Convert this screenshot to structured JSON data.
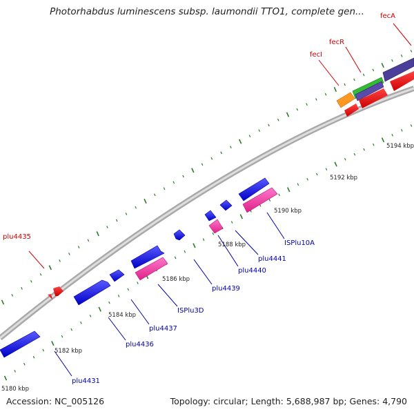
{
  "title": "Photorhabdus luminescens subsp. laumondii TTO1, complete gen...",
  "footer": {
    "accession": "Accession: NC_005126",
    "summary": "Topology: circular; Length: 5,688,987 bp; Genes: 4,790"
  },
  "colors": {
    "red_label": "#cc0000",
    "blue_label": "#0000aa",
    "blue_feature": "#1a1ae6",
    "pink_feature": "#ee3399",
    "red_feature": "#ee0000",
    "orange_feature": "#ff9922",
    "green_feature": "#33bb33",
    "purple_feature": "#4b3f99",
    "tick_green": "#2a7a2a",
    "backbone": "#909090"
  },
  "tick_labels": [
    {
      "text": "5180 kbp"
    },
    {
      "text": "5182 kbp"
    },
    {
      "text": "5184 kbp"
    },
    {
      "text": "5186 kbp"
    },
    {
      "text": "5188 kbp"
    },
    {
      "text": "5190 kbp"
    },
    {
      "text": "5192 kbp"
    },
    {
      "text": "5194 kbp"
    }
  ],
  "gene_labels": [
    {
      "text": "plu4431",
      "color": "blue"
    },
    {
      "text": "plu4436",
      "color": "blue"
    },
    {
      "text": "plu4437",
      "color": "blue"
    },
    {
      "text": "ISPlu3D",
      "color": "blue"
    },
    {
      "text": "plu4439",
      "color": "blue"
    },
    {
      "text": "plu4440",
      "color": "blue"
    },
    {
      "text": "plu4441",
      "color": "blue"
    },
    {
      "text": "ISPlu10A",
      "color": "blue"
    },
    {
      "text": "plu4435",
      "color": "red"
    },
    {
      "text": "fecI",
      "color": "red"
    },
    {
      "text": "fecR",
      "color": "red"
    },
    {
      "text": "fecA",
      "color": "red"
    }
  ]
}
